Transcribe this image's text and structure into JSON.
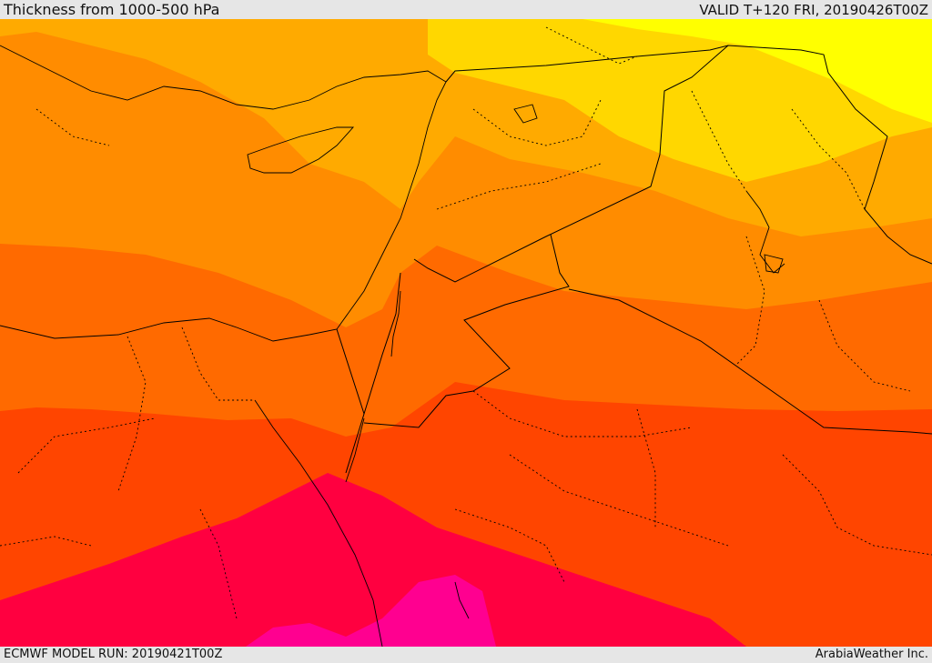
{
  "header": {
    "title": "Thickness from 1000-500 hPa",
    "valid": "VALID T+120 FRI, 20190426T00Z"
  },
  "footer": {
    "model_run": "ECMWF MODEL RUN: 20190421T00Z",
    "credit": "ArabiaWeather Inc."
  },
  "map": {
    "field": "1000-500 hPa thickness",
    "color_bands": [
      "#ffff00",
      "#ffd700",
      "#ffaa00",
      "#ff8c00",
      "#ff6a00",
      "#ff4500",
      "#ff0040",
      "#ff0090"
    ],
    "border_color": "#000000"
  }
}
